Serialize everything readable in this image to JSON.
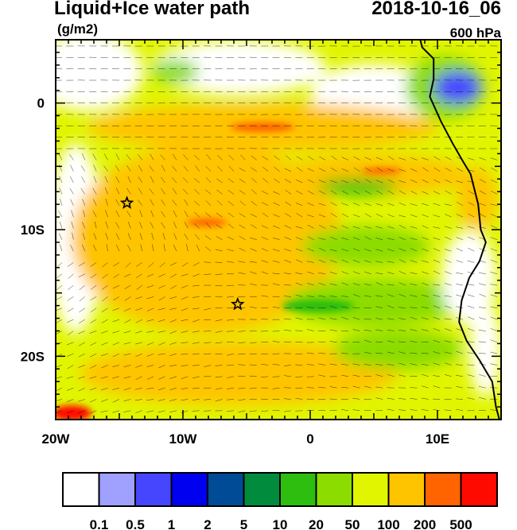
{
  "header": {
    "title": "Liquid+Ice water path",
    "units": "(g/m2)",
    "datetime": "2018-10-16_06",
    "level": "600 hPa"
  },
  "map": {
    "lon_range": [
      -20,
      15
    ],
    "lat_range": [
      -25,
      5
    ],
    "x_ticks": [
      {
        "value": -20,
        "label": "20W"
      },
      {
        "value": -10,
        "label": "10W"
      },
      {
        "value": 0,
        "label": "0"
      },
      {
        "value": 10,
        "label": "10E"
      }
    ],
    "y_ticks": [
      {
        "value": 0,
        "label": "0"
      },
      {
        "value": -10,
        "label": "10S"
      },
      {
        "value": -20,
        "label": "20S"
      }
    ],
    "markers": [
      {
        "name": "star",
        "lon": -14.4,
        "lat": -7.9
      },
      {
        "name": "star",
        "lon": -5.7,
        "lat": -15.9
      }
    ],
    "overlay": "wind barbs",
    "dominant_color": "#FFC400"
  },
  "colorbar": {
    "labels": [
      "0.1",
      "0.5",
      "1",
      "2",
      "5",
      "10",
      "20",
      "50",
      "100",
      "200",
      "500"
    ],
    "colors": [
      "#FFFFFF",
      "#A0A0FF",
      "#4646FF",
      "#0000F0",
      "#004B96",
      "#008C3C",
      "#2DBE0F",
      "#8CDC00",
      "#E1F500",
      "#FFC400",
      "#FF6400",
      "#FF0A00"
    ]
  }
}
